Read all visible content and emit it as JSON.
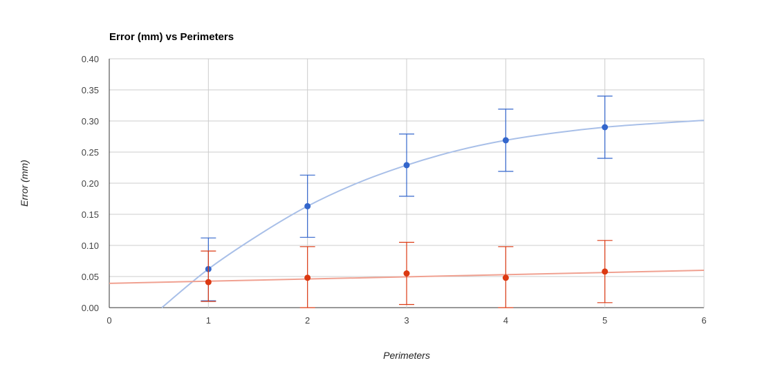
{
  "chart_data": {
    "type": "scatter",
    "title": "Error (mm) vs Perimeters",
    "xlabel": "Perimeters",
    "ylabel": "Error (mm)",
    "xlim": [
      0,
      6
    ],
    "ylim": [
      0,
      0.4
    ],
    "x_ticks": [
      "0",
      "1",
      "2",
      "3",
      "4",
      "5",
      "6"
    ],
    "y_ticks": [
      "0.00",
      "0.05",
      "0.10",
      "0.15",
      "0.20",
      "0.25",
      "0.30",
      "0.35",
      "0.40"
    ],
    "grid": true,
    "series": [
      {
        "color": "#3366cc",
        "trend_color": "#a8bfe8",
        "points": [
          {
            "x": 1,
            "y": 0.062,
            "err_low": 0.011,
            "err_high": 0.112
          },
          {
            "x": 2,
            "y": 0.163,
            "err_low": 0.113,
            "err_high": 0.213
          },
          {
            "x": 3,
            "y": 0.229,
            "err_low": 0.179,
            "err_high": 0.279
          },
          {
            "x": 4,
            "y": 0.269,
            "err_low": 0.219,
            "err_high": 0.319
          },
          {
            "x": 5,
            "y": 0.29,
            "err_low": 0.24,
            "err_high": 0.34
          }
        ],
        "trendline": [
          {
            "x": 0.53,
            "y": 0.0
          },
          {
            "x": 1,
            "y": 0.062
          },
          {
            "x": 1.5,
            "y": 0.116
          },
          {
            "x": 2,
            "y": 0.163
          },
          {
            "x": 2.5,
            "y": 0.2
          },
          {
            "x": 3,
            "y": 0.229
          },
          {
            "x": 3.5,
            "y": 0.252
          },
          {
            "x": 4,
            "y": 0.269
          },
          {
            "x": 4.5,
            "y": 0.281
          },
          {
            "x": 5,
            "y": 0.29
          },
          {
            "x": 5.5,
            "y": 0.296
          },
          {
            "x": 6,
            "y": 0.301
          }
        ]
      },
      {
        "color": "#dc3912",
        "trend_color": "#f0a090",
        "points": [
          {
            "x": 1,
            "y": 0.041,
            "err_low": 0.01,
            "err_high": 0.091
          },
          {
            "x": 2,
            "y": 0.048,
            "err_low": 0.0,
            "err_high": 0.098
          },
          {
            "x": 3,
            "y": 0.055,
            "err_low": 0.005,
            "err_high": 0.105
          },
          {
            "x": 4,
            "y": 0.048,
            "err_low": 0.0,
            "err_high": 0.098
          },
          {
            "x": 5,
            "y": 0.058,
            "err_low": 0.008,
            "err_high": 0.108
          }
        ],
        "trendline": [
          {
            "x": 0,
            "y": 0.039
          },
          {
            "x": 6,
            "y": 0.06
          }
        ]
      }
    ]
  }
}
